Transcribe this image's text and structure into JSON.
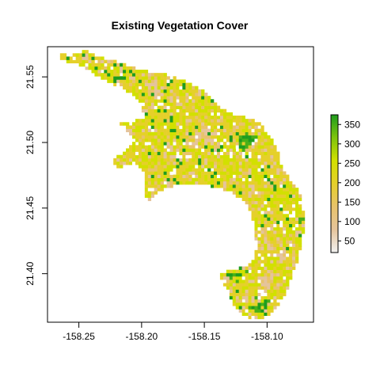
{
  "chart_data": {
    "type": "heatmap",
    "title": "Existing Vegetation Cover",
    "xlabel": "",
    "ylabel": "",
    "xlim": [
      -158.275,
      -158.063
    ],
    "ylim": [
      21.363,
      21.573
    ],
    "x_ticks": [
      -158.25,
      -158.2,
      -158.15,
      -158.1
    ],
    "x_tick_labels": [
      "-158.25",
      "-158.20",
      "-158.15",
      "-158.10"
    ],
    "y_ticks": [
      21.4,
      21.45,
      21.5,
      21.55
    ],
    "y_tick_labels": [
      "21.40",
      "21.45",
      "21.50",
      "21.55"
    ],
    "grid": false,
    "legend": {
      "placement": "right",
      "range": [
        20,
        375
      ],
      "ticks": [
        50,
        100,
        150,
        200,
        250,
        300,
        350
      ],
      "tick_labels": [
        "50",
        "100",
        "150",
        "200",
        "250",
        "300",
        "350"
      ],
      "colors": [
        "#f2f2f2",
        "#e5c49b",
        "#e8c36b",
        "#e5d02a",
        "#d2e000",
        "#7ec40c",
        "#1e9c1e"
      ]
    },
    "raster": {
      "cell_size_deg": 0.0025,
      "description_values": "Values range roughly 20-375; dominant class ~200 (yellow), patches ~120-150 (tan) and ~330-370 (green)",
      "region_outline_lonlat": [
        [
          -158.258,
          21.566
        ],
        [
          -158.245,
          21.57
        ],
        [
          -158.232,
          21.565
        ],
        [
          -158.215,
          21.56
        ],
        [
          -158.2,
          21.555
        ],
        [
          -158.185,
          21.553
        ],
        [
          -158.168,
          21.548
        ],
        [
          -158.155,
          21.542
        ],
        [
          -158.145,
          21.535
        ],
        [
          -158.138,
          21.528
        ],
        [
          -158.13,
          21.522
        ],
        [
          -158.118,
          21.52
        ],
        [
          -158.105,
          21.514
        ],
        [
          -158.098,
          21.505
        ],
        [
          -158.092,
          21.495
        ],
        [
          -158.088,
          21.48
        ],
        [
          -158.08,
          21.47
        ],
        [
          -158.074,
          21.462
        ],
        [
          -158.071,
          21.45
        ],
        [
          -158.07,
          21.438
        ],
        [
          -158.072,
          21.425
        ],
        [
          -158.075,
          21.412
        ],
        [
          -158.08,
          21.4
        ],
        [
          -158.083,
          21.388
        ],
        [
          -158.09,
          21.378
        ],
        [
          -158.097,
          21.37
        ],
        [
          -158.105,
          21.364
        ],
        [
          -158.115,
          21.366
        ],
        [
          -158.122,
          21.372
        ],
        [
          -158.128,
          21.378
        ],
        [
          -158.13,
          21.386
        ],
        [
          -158.135,
          21.392
        ],
        [
          -158.138,
          21.399
        ],
        [
          -158.13,
          21.403
        ],
        [
          -158.118,
          21.405
        ],
        [
          -158.11,
          21.412
        ],
        [
          -158.108,
          21.422
        ],
        [
          -158.11,
          21.432
        ],
        [
          -158.112,
          21.445
        ],
        [
          -158.118,
          21.455
        ],
        [
          -158.128,
          21.462
        ],
        [
          -158.14,
          21.466
        ],
        [
          -158.155,
          21.468
        ],
        [
          -158.17,
          21.468
        ],
        [
          -158.18,
          21.465
        ],
        [
          -158.19,
          21.46
        ],
        [
          -158.195,
          21.455
        ],
        [
          -158.198,
          21.462
        ],
        [
          -158.198,
          21.478
        ],
        [
          -158.205,
          21.484
        ],
        [
          -158.218,
          21.481
        ],
        [
          -158.225,
          21.485
        ],
        [
          -158.212,
          21.494
        ],
        [
          -158.205,
          21.502
        ],
        [
          -158.212,
          21.508
        ],
        [
          -158.218,
          21.514
        ],
        [
          -158.205,
          21.516
        ],
        [
          -158.198,
          21.522
        ],
        [
          -158.202,
          21.532
        ],
        [
          -158.21,
          21.538
        ],
        [
          -158.218,
          21.542
        ],
        [
          -158.23,
          21.548
        ],
        [
          -158.242,
          21.555
        ],
        [
          -158.252,
          21.56
        ],
        [
          -158.262,
          21.562
        ],
        [
          -158.268,
          21.566
        ],
        [
          -158.26,
          21.568
        ]
      ],
      "green_patches_lonlat": [
        {
          "center": [
            -158.118,
            21.5
          ],
          "radius": 0.012
        },
        {
          "center": [
            -158.085,
            21.485
          ],
          "radius": 0.008
        },
        {
          "center": [
            -158.125,
            21.4
          ],
          "radius": 0.01
        },
        {
          "center": [
            -158.105,
            21.375
          ],
          "radius": 0.009
        },
        {
          "center": [
            -158.073,
            21.44
          ],
          "radius": 0.005
        }
      ],
      "tan_patches_lonlat": [
        {
          "center": [
            -158.15,
            21.505
          ],
          "radius": 0.015
        },
        {
          "center": [
            -158.093,
            21.42
          ],
          "radius": 0.015
        },
        {
          "center": [
            -158.19,
            21.54
          ],
          "radius": 0.01
        },
        {
          "center": [
            -158.1,
            21.395
          ],
          "radius": 0.01
        }
      ]
    }
  },
  "colors": {
    "background": "#ffffff",
    "axis": "#000000",
    "yellow": "#e5d02a",
    "yellow_alt": "#d2e000",
    "tan": "#e5c49b",
    "tan_alt": "#e8c36b",
    "green": "#1e9c1e",
    "green_alt": "#48b018",
    "white": "#ffffff"
  }
}
